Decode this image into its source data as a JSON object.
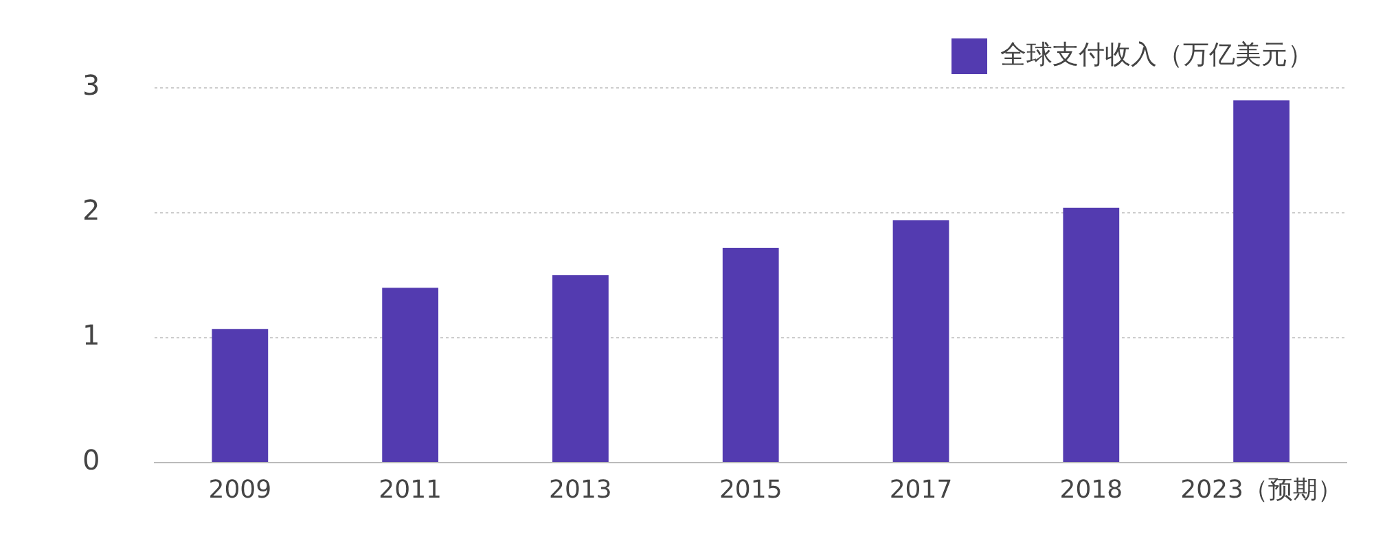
{
  "chart_data": {
    "type": "bar",
    "categories": [
      "2009",
      "2011",
      "2013",
      "2015",
      "2017",
      "2018",
      "2023（预期）"
    ],
    "series": [
      {
        "name": "全球支付收入（万亿美元）",
        "color": "#533bb0",
        "values": [
          1.07,
          1.4,
          1.5,
          1.72,
          1.94,
          2.04,
          2.9
        ]
      }
    ],
    "ylim": [
      0,
      3
    ],
    "yticks": [
      0,
      1,
      2,
      3
    ],
    "grid": "y",
    "legend": "top right"
  }
}
